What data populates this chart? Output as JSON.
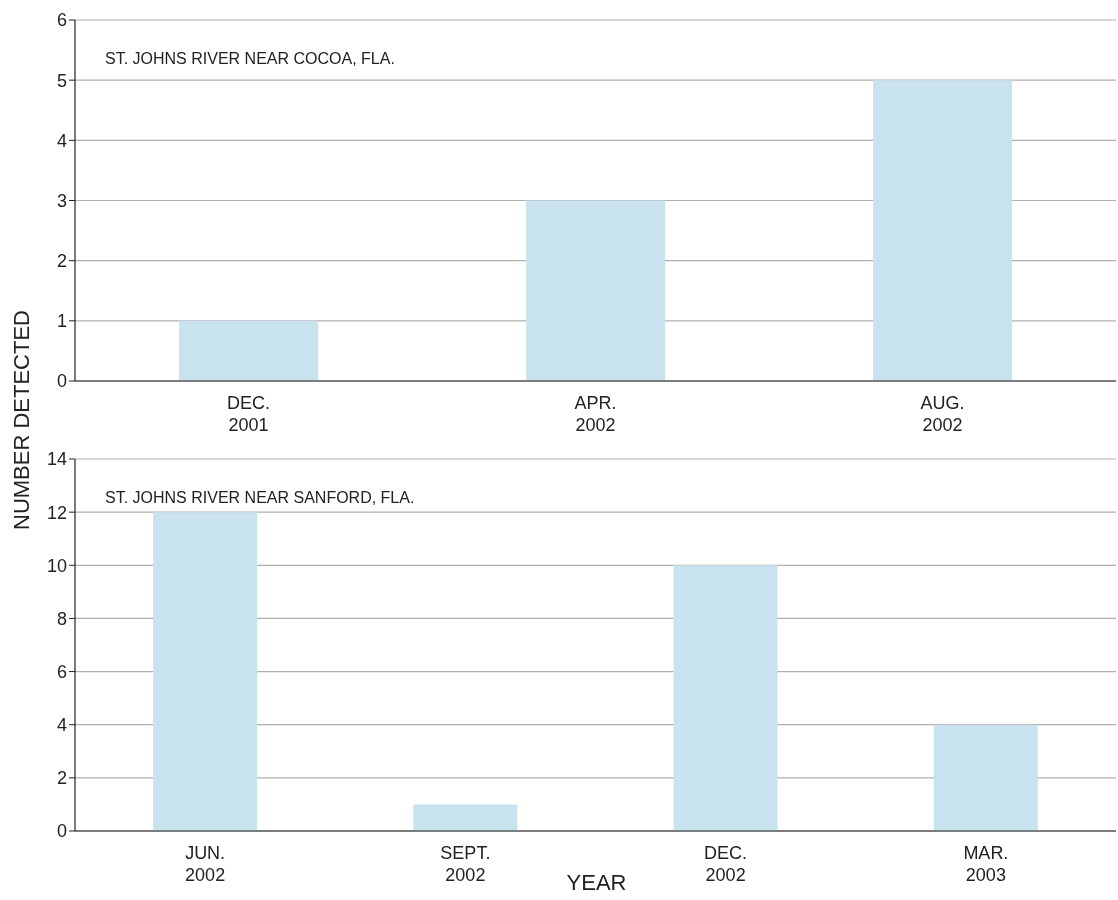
{
  "chart_data": [
    {
      "type": "bar",
      "ylabel": "NUMBER DETECTED",
      "annotations": [
        "ST. JOHNS RIVER NEAR COCOA, FLA."
      ],
      "categories": [
        "DEC. 2001",
        "APR. 2002",
        "AUG. 2002"
      ],
      "values": [
        1,
        3,
        5
      ],
      "color": "#c9e3ee",
      "ylim": [
        0,
        6
      ],
      "yticks": [
        0,
        1,
        2,
        3,
        4,
        5,
        6
      ],
      "grid": "y"
    },
    {
      "type": "bar",
      "xlabel": "YEAR",
      "annotations": [
        "ST. JOHNS RIVER NEAR SANFORD, FLA."
      ],
      "categories": [
        "JUN. 2002",
        "SEPT. 2002",
        "DEC. 2002",
        "MAR. 2003"
      ],
      "values": [
        12,
        1,
        10,
        4
      ],
      "color": "#c9e3ee",
      "ylim": [
        0,
        14
      ],
      "yticks": [
        0,
        2,
        4,
        6,
        8,
        10,
        12,
        14
      ],
      "grid": "y"
    }
  ]
}
